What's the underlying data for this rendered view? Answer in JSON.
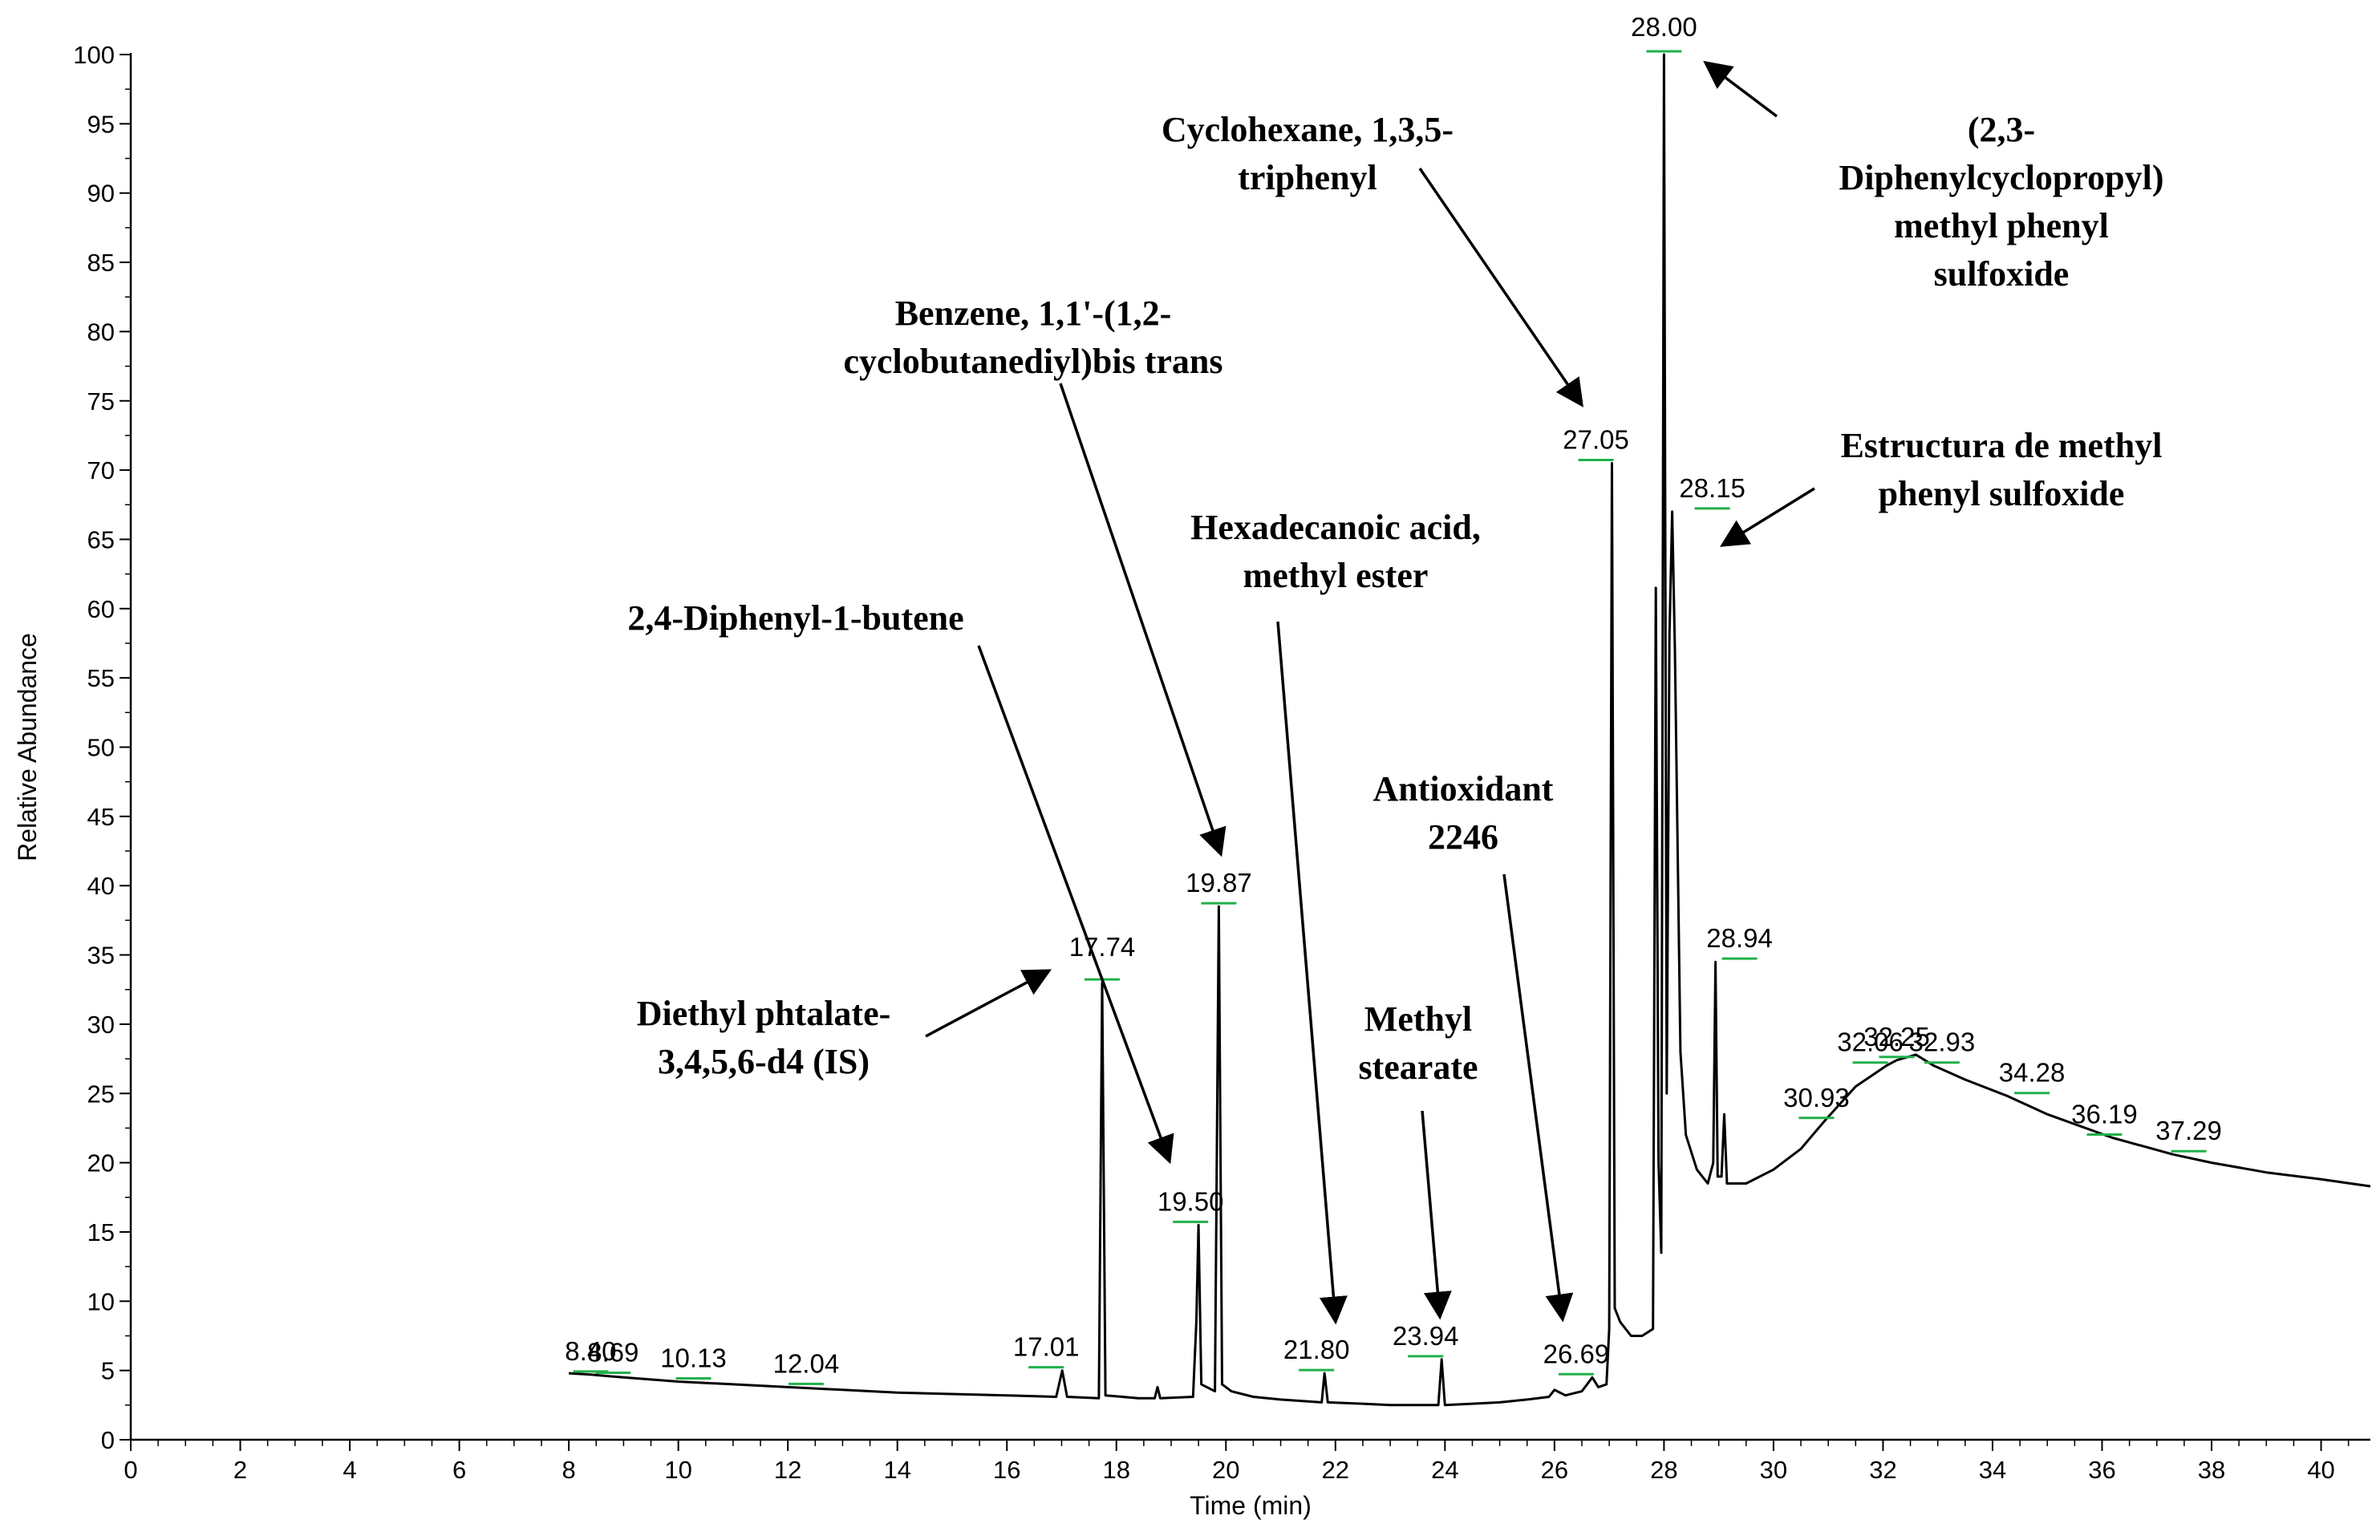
{
  "chart_data": {
    "type": "line",
    "xlabel": "Time (min)",
    "ylabel": "Relative Abundance",
    "xlim": [
      0,
      40.9
    ],
    "ylim": [
      0,
      100
    ],
    "x_ticks": [
      0,
      2,
      4,
      6,
      8,
      10,
      12,
      14,
      16,
      18,
      20,
      22,
      24,
      26,
      28,
      30,
      32,
      34,
      36,
      38,
      40
    ],
    "y_ticks": [
      0,
      5,
      10,
      15,
      20,
      25,
      30,
      35,
      40,
      45,
      50,
      55,
      60,
      65,
      70,
      75,
      80,
      85,
      90,
      95,
      100
    ],
    "grid": false,
    "colors": {
      "trace": "#000000",
      "marker": "#22b04a"
    },
    "series": [
      {
        "points": [
          [
            8.0,
            4.8
          ],
          [
            8.4,
            4.7
          ],
          [
            9.0,
            4.5
          ],
          [
            10.0,
            4.2
          ],
          [
            11.0,
            4.0
          ],
          [
            12.0,
            3.8
          ],
          [
            13.0,
            3.6
          ],
          [
            14.0,
            3.4
          ],
          [
            15.0,
            3.3
          ],
          [
            16.0,
            3.2
          ],
          [
            16.9,
            3.1
          ],
          [
            17.01,
            5.0
          ],
          [
            17.1,
            3.1
          ],
          [
            17.68,
            3.0
          ],
          [
            17.74,
            33.0
          ],
          [
            17.8,
            3.2
          ],
          [
            18.4,
            3.0
          ],
          [
            18.7,
            3.0
          ],
          [
            18.75,
            3.8
          ],
          [
            18.8,
            3.0
          ],
          [
            19.4,
            3.1
          ],
          [
            19.46,
            8.5
          ],
          [
            19.5,
            15.5
          ],
          [
            19.55,
            4.0
          ],
          [
            19.8,
            3.5
          ],
          [
            19.87,
            38.5
          ],
          [
            19.93,
            4.0
          ],
          [
            20.1,
            3.5
          ],
          [
            20.5,
            3.1
          ],
          [
            21.0,
            2.9
          ],
          [
            21.75,
            2.7
          ],
          [
            21.8,
            4.8
          ],
          [
            21.86,
            2.7
          ],
          [
            22.5,
            2.6
          ],
          [
            23.0,
            2.5
          ],
          [
            23.5,
            2.5
          ],
          [
            23.88,
            2.5
          ],
          [
            23.94,
            5.8
          ],
          [
            24.0,
            2.5
          ],
          [
            24.5,
            2.6
          ],
          [
            25.0,
            2.7
          ],
          [
            25.5,
            2.9
          ],
          [
            25.9,
            3.1
          ],
          [
            26.0,
            3.6
          ],
          [
            26.2,
            3.2
          ],
          [
            26.5,
            3.5
          ],
          [
            26.69,
            4.5
          ],
          [
            26.8,
            3.8
          ],
          [
            26.95,
            4.0
          ],
          [
            27.0,
            8.0
          ],
          [
            27.05,
            70.5
          ],
          [
            27.1,
            9.5
          ],
          [
            27.2,
            8.5
          ],
          [
            27.4,
            7.5
          ],
          [
            27.6,
            7.5
          ],
          [
            27.8,
            8.0
          ],
          [
            27.85,
            61.5
          ],
          [
            27.9,
            20.0
          ],
          [
            27.95,
            13.5
          ],
          [
            28.0,
            100.0
          ],
          [
            28.05,
            25.0
          ],
          [
            28.1,
            58.0
          ],
          [
            28.15,
            67.0
          ],
          [
            28.2,
            57.0
          ],
          [
            28.3,
            28.0
          ],
          [
            28.4,
            22.0
          ],
          [
            28.6,
            19.5
          ],
          [
            28.8,
            18.5
          ],
          [
            28.9,
            20.0
          ],
          [
            28.94,
            34.5
          ],
          [
            28.98,
            19.0
          ],
          [
            29.05,
            19.0
          ],
          [
            29.1,
            23.5
          ],
          [
            29.15,
            18.5
          ],
          [
            29.5,
            18.5
          ],
          [
            30.0,
            19.5
          ],
          [
            30.5,
            21.0
          ],
          [
            30.93,
            23.0
          ],
          [
            31.5,
            25.5
          ],
          [
            32.06,
            27.0
          ],
          [
            32.25,
            27.4
          ],
          [
            32.6,
            27.8
          ],
          [
            32.93,
            27.0
          ],
          [
            33.5,
            26.0
          ],
          [
            34.28,
            24.8
          ],
          [
            35.0,
            23.5
          ],
          [
            36.19,
            21.8
          ],
          [
            37.29,
            20.6
          ],
          [
            38.0,
            20.0
          ],
          [
            39.0,
            19.3
          ],
          [
            40.0,
            18.8
          ],
          [
            40.9,
            18.3
          ]
        ]
      }
    ],
    "peaks": [
      {
        "rt": "8.40",
        "x": 8.4,
        "y": 4.7
      },
      {
        "rt": "8.69",
        "x": 8.69,
        "y": 4.6
      },
      {
        "rt": "10.13",
        "x": 10.13,
        "y": 4.2
      },
      {
        "rt": "12.04",
        "x": 12.04,
        "y": 3.8
      },
      {
        "rt": "17.01",
        "x": 17.01,
        "y": 5.0
      },
      {
        "rt": "17.74",
        "x": 17.74,
        "y": 33.0
      },
      {
        "rt": "19.50",
        "x": 19.5,
        "y": 15.5
      },
      {
        "rt": "19.87",
        "x": 19.87,
        "y": 38.5
      },
      {
        "rt": "21.80",
        "x": 21.8,
        "y": 4.8
      },
      {
        "rt": "23.94",
        "x": 23.94,
        "y": 5.8
      },
      {
        "rt": "26.69",
        "x": 26.69,
        "y": 4.5
      },
      {
        "rt": "27.05",
        "x": 27.05,
        "y": 70.5
      },
      {
        "rt": "28.00",
        "x": 28.0,
        "y": 100.0
      },
      {
        "rt": "28.15",
        "x": 28.15,
        "y": 67.0
      },
      {
        "rt": "28.94",
        "x": 28.94,
        "y": 34.5
      },
      {
        "rt": "30.93",
        "x": 30.93,
        "y": 23.0
      },
      {
        "rt": "32.06",
        "x": 32.06,
        "y": 27.0
      },
      {
        "rt": "32.25",
        "x": 32.25,
        "y": 27.4
      },
      {
        "rt": "32.93",
        "x": 32.93,
        "y": 27.0
      },
      {
        "rt": "34.28",
        "x": 34.28,
        "y": 24.8
      },
      {
        "rt": "36.19",
        "x": 36.19,
        "y": 21.8
      },
      {
        "rt": "37.29",
        "x": 37.29,
        "y": 20.6
      }
    ],
    "annotations": [
      {
        "lines": [
          "Cyclohexane, 1,3,5-",
          "triphenyl"
        ],
        "peak": "27.05"
      },
      {
        "lines": [
          "(2,3-",
          "Diphenylcyclopropyl)",
          "methyl phenyl",
          "sulfoxide"
        ],
        "peak": "28.00"
      },
      {
        "lines": [
          "Benzene, 1,1'-(1,2-",
          "cyclobutanediyl)bis trans"
        ],
        "peak": "19.87"
      },
      {
        "lines": [
          "Estructura de methyl",
          "phenyl sulfoxide"
        ],
        "peak": "28.15"
      },
      {
        "lines": [
          "Hexadecanoic acid,",
          "methyl ester"
        ],
        "peak": "21.80"
      },
      {
        "lines": [
          "2,4-Diphenyl-1-butene"
        ],
        "peak": "19.50"
      },
      {
        "lines": [
          "Antioxidant",
          "2246"
        ],
        "peak": "26.69"
      },
      {
        "lines": [
          "Methyl",
          "stearate"
        ],
        "peak": "23.94"
      },
      {
        "lines": [
          "Diethyl phtalate-",
          "3,4,5,6-d4 (IS)"
        ],
        "peak": "17.74"
      }
    ]
  }
}
